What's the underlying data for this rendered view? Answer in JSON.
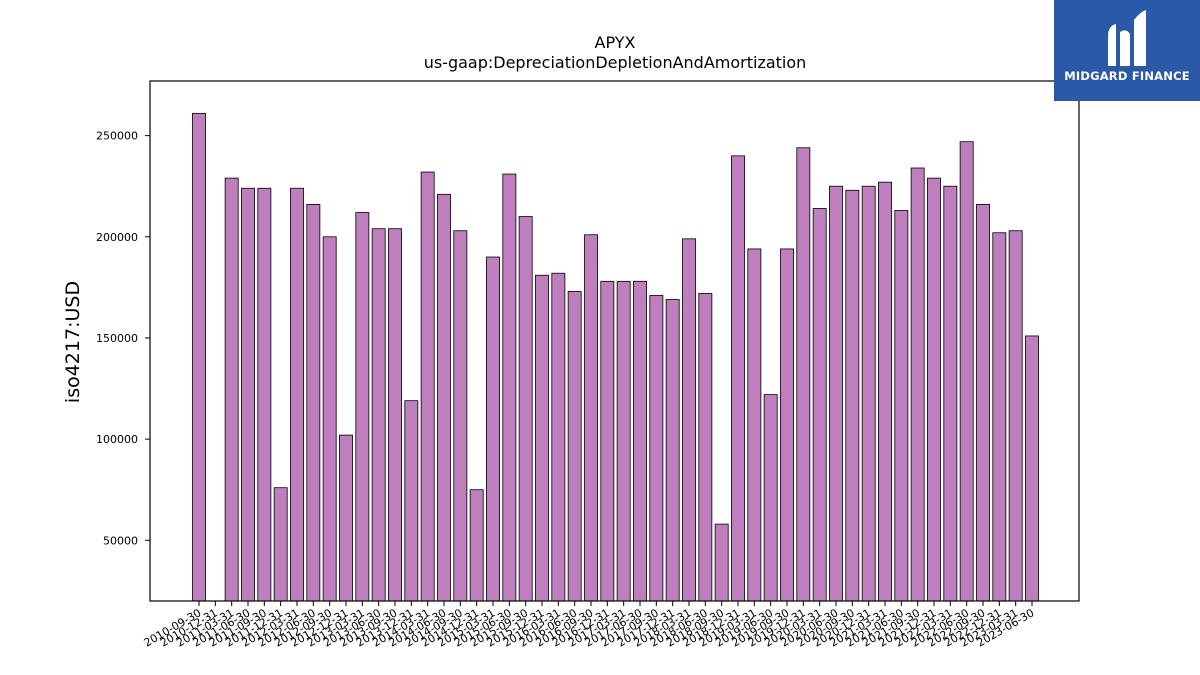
{
  "chart_data": {
    "type": "bar",
    "title": "APYX",
    "subtitle": "us-gaap:DepreciationDepletionAndAmortization",
    "xlabel": "",
    "ylabel": "iso4217:USD",
    "ylim": [
      20000,
      277000
    ],
    "yticks": [
      50000,
      100000,
      150000,
      200000,
      250000
    ],
    "grid": false,
    "bar_color": "#bf7fbf",
    "categories": [
      "2010-09-30",
      "2010-12-31",
      "2011-03-31",
      "2011-06-30",
      "2011-09-30",
      "2011-12-31",
      "2012-03-31",
      "2012-06-30",
      "2012-09-30",
      "2012-12-31",
      "2013-03-31",
      "2013-06-30",
      "2013-09-30",
      "2013-12-31",
      "2014-03-31",
      "2014-06-30",
      "2014-09-30",
      "2014-12-31",
      "2015-03-31",
      "2015-06-30",
      "2015-09-30",
      "2015-12-31",
      "2016-03-31",
      "2016-06-30",
      "2016-09-30",
      "2016-12-31",
      "2017-03-31",
      "2017-06-30",
      "2017-09-30",
      "2017-12-31",
      "2018-03-31",
      "2018-06-30",
      "2018-09-30",
      "2018-12-31",
      "2019-03-31",
      "2019-06-30",
      "2019-09-30",
      "2019-12-31",
      "2020-03-31",
      "2020-06-30",
      "2020-09-30",
      "2020-12-31",
      "2021-03-31",
      "2021-06-30",
      "2021-09-30",
      "2021-12-31",
      "2022-03-31",
      "2022-06-30",
      "2022-09-30",
      "2022-12-31",
      "2023-03-31",
      "2023-06-30"
    ],
    "values": [
      261000,
      null,
      229000,
      224000,
      224000,
      76000,
      224000,
      216000,
      200000,
      102000,
      212000,
      204000,
      204000,
      119000,
      232000,
      221000,
      203000,
      75000,
      190000,
      231000,
      210000,
      181000,
      182000,
      173000,
      201000,
      178000,
      178000,
      178000,
      171000,
      169000,
      199000,
      172000,
      58000,
      240000,
      194000,
      122000,
      194000,
      244000,
      214000,
      225000,
      223000,
      225000,
      227000,
      213000,
      234000,
      229000,
      225000,
      247000,
      216000,
      202000,
      203000,
      151000
    ]
  },
  "logo": {
    "text": "MIDGARD FINANCE",
    "bg": "#2a59a8"
  }
}
